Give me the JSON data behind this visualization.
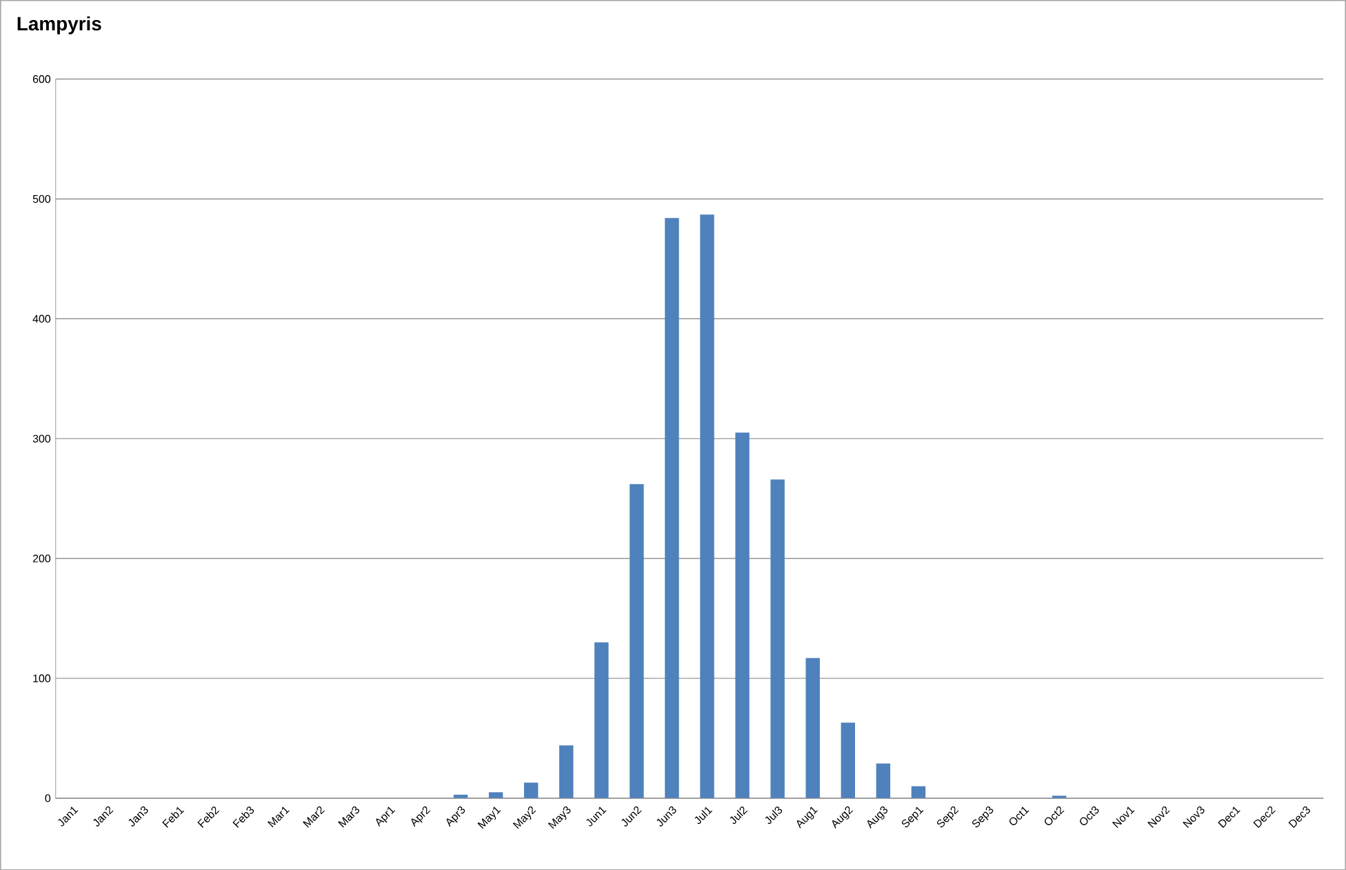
{
  "chart_data": {
    "type": "bar",
    "title": "Lampyris",
    "categories": [
      "Jan1",
      "Jan2",
      "Jan3",
      "Feb1",
      "Feb2",
      "Feb3",
      "Mar1",
      "Mar2",
      "Mar3",
      "Apr1",
      "Apr2",
      "Apr3",
      "May1",
      "May2",
      "May3",
      "Jun1",
      "Jun2",
      "Jun3",
      "Jul1",
      "Jul2",
      "Jul3",
      "Aug1",
      "Aug2",
      "Aug3",
      "Sep1",
      "Sep2",
      "Sep3",
      "Oct1",
      "Oct2",
      "Oct3",
      "Nov1",
      "Nov2",
      "Nov3",
      "Dec1",
      "Dec2",
      "Dec3"
    ],
    "values": [
      0,
      0,
      0,
      0,
      0,
      0,
      0,
      0,
      0,
      0,
      0,
      3,
      5,
      13,
      44,
      130,
      262,
      484,
      487,
      305,
      266,
      117,
      63,
      29,
      10,
      0,
      0,
      0,
      2,
      0,
      0,
      0,
      0,
      0,
      0,
      0
    ],
    "color": "#4f81bd",
    "ylim": [
      0,
      600
    ],
    "yticks": [
      0,
      100,
      200,
      300,
      400,
      500,
      600
    ],
    "grid": "y"
  }
}
